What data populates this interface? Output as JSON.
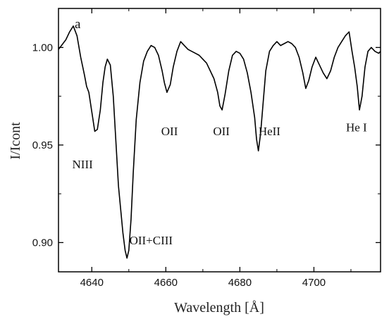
{
  "chart_data": {
    "type": "line",
    "panel_label": "a",
    "xlabel": "Wavelength [Å]",
    "ylabel": "I/Icont",
    "xlim": [
      4631,
      4718
    ],
    "ylim": [
      0.885,
      1.02
    ],
    "x_ticks": [
      4640,
      4660,
      4680,
      4700
    ],
    "y_ticks": [
      0.9,
      0.95,
      1.0
    ],
    "y_tick_labels": [
      "0.90",
      "0.95",
      "1.00"
    ],
    "grid": false,
    "series": [
      {
        "x": [
          4631,
          4633,
          4634,
          4635,
          4636,
          4637,
          4638,
          4638.6,
          4639.2,
          4640,
          4640.8,
          4641.5,
          4642.3,
          4643,
          4643.6,
          4644.2,
          4645,
          4645.8,
          4646.5,
          4647.2,
          4647.8,
          4648.4,
          4649,
          4649.5,
          4650,
          4650.6,
          4651.2,
          4652,
          4653,
          4654,
          4655,
          4656,
          4657,
          4658,
          4659,
          4659.6,
          4660.3,
          4661.2,
          4662,
          4663,
          4664,
          4665,
          4666,
          4667,
          4668,
          4669,
          4670,
          4671,
          4672,
          4673,
          4674,
          4674.6,
          4675.2,
          4676,
          4677,
          4678,
          4679,
          4680,
          4681,
          4682,
          4683,
          4684,
          4684.5,
          4685,
          4685.6,
          4686.3,
          4687,
          4688,
          4689,
          4690,
          4691,
          4692,
          4693,
          4694,
          4695,
          4696,
          4697,
          4697.8,
          4698.6,
          4699.5,
          4700.5,
          4701.5,
          4702.5,
          4703.5,
          4704.5,
          4705.5,
          4706.5,
          4707.5,
          4708.5,
          4709.5,
          4710.3,
          4711,
          4711.7,
          4712.3,
          4713,
          4713.8,
          4714.6,
          4715.5,
          4716.5,
          4717.5,
          4718
        ],
        "y": [
          0.999,
          1.004,
          1.008,
          1.011,
          1.006,
          0.995,
          0.986,
          0.98,
          0.977,
          0.967,
          0.957,
          0.958,
          0.968,
          0.982,
          0.99,
          0.994,
          0.991,
          0.975,
          0.952,
          0.929,
          0.917,
          0.905,
          0.896,
          0.892,
          0.896,
          0.912,
          0.936,
          0.963,
          0.982,
          0.993,
          0.998,
          1.001,
          1.0,
          0.996,
          0.988,
          0.982,
          0.977,
          0.981,
          0.99,
          0.998,
          1.003,
          1.001,
          0.999,
          0.998,
          0.997,
          0.996,
          0.994,
          0.992,
          0.988,
          0.984,
          0.977,
          0.97,
          0.968,
          0.976,
          0.988,
          0.996,
          0.998,
          0.997,
          0.994,
          0.987,
          0.977,
          0.964,
          0.953,
          0.947,
          0.956,
          0.972,
          0.988,
          0.998,
          1.001,
          1.003,
          1.001,
          1.002,
          1.003,
          1.002,
          1.0,
          0.995,
          0.987,
          0.979,
          0.983,
          0.99,
          0.995,
          0.991,
          0.987,
          0.984,
          0.988,
          0.995,
          1.0,
          1.003,
          1.006,
          1.008,
          0.998,
          0.99,
          0.98,
          0.968,
          0.975,
          0.99,
          0.998,
          1.0,
          0.998,
          0.997,
          0.998
        ]
      }
    ],
    "annotations": [
      {
        "text": "NIII",
        "x": 4637.5,
        "y": 0.938
      },
      {
        "text": "OII+CIII",
        "x": 4656,
        "y": 0.899
      },
      {
        "text": "OII",
        "x": 4661,
        "y": 0.955
      },
      {
        "text": "OII",
        "x": 4675,
        "y": 0.955
      },
      {
        "text": "HeII",
        "x": 4688,
        "y": 0.955
      },
      {
        "text": "He I",
        "x": 4711.5,
        "y": 0.957
      }
    ]
  }
}
